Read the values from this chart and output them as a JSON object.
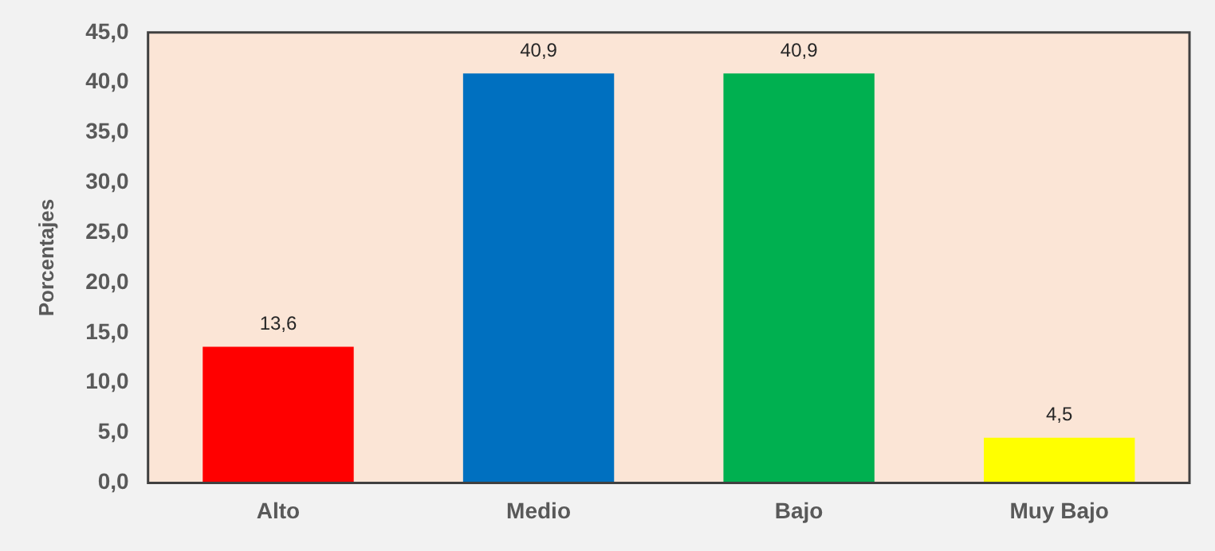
{
  "chart_data": {
    "type": "bar",
    "ylabel": "Porcentajes",
    "categories": [
      "Alto",
      "Medio",
      "Bajo",
      "Muy Bajo"
    ],
    "values": [
      13.6,
      40.9,
      40.9,
      4.5
    ],
    "colors": [
      "#ff0000",
      "#0070c0",
      "#00b050",
      "#ffff00"
    ],
    "value_labels": [
      "13,6",
      "40,9",
      "40,9",
      "4,5"
    ],
    "ylim": [
      0,
      45
    ],
    "yticks": [
      {
        "value": 0,
        "label": "0,0"
      },
      {
        "value": 5,
        "label": "5,0"
      },
      {
        "value": 10,
        "label": "10,0"
      },
      {
        "value": 15,
        "label": "15,0"
      },
      {
        "value": 20,
        "label": "20,0"
      },
      {
        "value": 25,
        "label": "25,0"
      },
      {
        "value": 30,
        "label": "30,0"
      },
      {
        "value": 35,
        "label": "35,0"
      },
      {
        "value": 40,
        "label": "40,0"
      },
      {
        "value": 45,
        "label": "45,0"
      }
    ],
    "grid": false,
    "legend": false
  }
}
